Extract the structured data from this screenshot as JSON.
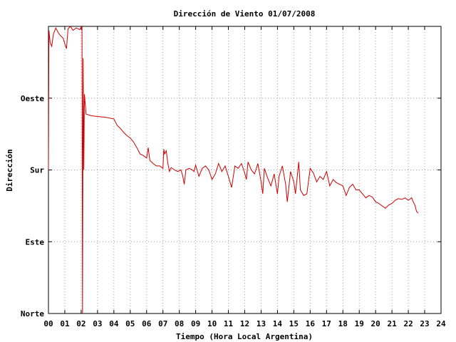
{
  "chart_data": {
    "type": "line",
    "title": "Dirección de Viento 01/07/2008",
    "xlabel": "Tiempo (Hora Local Argentina)",
    "ylabel": "Dirección",
    "xlim": [
      0,
      24
    ],
    "ylim": [
      0,
      360
    ],
    "x_ticks": [
      {
        "value": 0,
        "label": "00"
      },
      {
        "value": 1,
        "label": "01"
      },
      {
        "value": 2,
        "label": "02"
      },
      {
        "value": 3,
        "label": "03"
      },
      {
        "value": 4,
        "label": "04"
      },
      {
        "value": 5,
        "label": "05"
      },
      {
        "value": 6,
        "label": "06"
      },
      {
        "value": 7,
        "label": "07"
      },
      {
        "value": 8,
        "label": "08"
      },
      {
        "value": 9,
        "label": "09"
      },
      {
        "value": 10,
        "label": "10"
      },
      {
        "value": 11,
        "label": "11"
      },
      {
        "value": 12,
        "label": "12"
      },
      {
        "value": 13,
        "label": "13"
      },
      {
        "value": 14,
        "label": "14"
      },
      {
        "value": 15,
        "label": "15"
      },
      {
        "value": 16,
        "label": "16"
      },
      {
        "value": 17,
        "label": "17"
      },
      {
        "value": 18,
        "label": "18"
      },
      {
        "value": 19,
        "label": "19"
      },
      {
        "value": 20,
        "label": "20"
      },
      {
        "value": 21,
        "label": "21"
      },
      {
        "value": 22,
        "label": "22"
      },
      {
        "value": 23,
        "label": "23"
      },
      {
        "value": 24,
        "label": "24"
      }
    ],
    "y_ticks": [
      {
        "value": 0,
        "label": "Norte"
      },
      {
        "value": 90,
        "label": "Este"
      },
      {
        "value": 180,
        "label": "Sur"
      },
      {
        "value": 270,
        "label": "Oeste"
      }
    ],
    "grid": true,
    "line_color": "#cc0000",
    "series": [
      {
        "values": [
          [
            0.0,
            180
          ],
          [
            0.03,
            355
          ],
          [
            0.1,
            340
          ],
          [
            0.2,
            335
          ],
          [
            0.3,
            350
          ],
          [
            0.45,
            358
          ],
          [
            0.6,
            352
          ],
          [
            0.75,
            348
          ],
          [
            0.9,
            345
          ],
          [
            1.0,
            338
          ],
          [
            1.1,
            332
          ],
          [
            1.2,
            357
          ],
          [
            1.35,
            360
          ],
          [
            1.5,
            355
          ],
          [
            1.7,
            358
          ],
          [
            1.9,
            356
          ],
          [
            2.05,
            360
          ],
          [
            2.08,
            0
          ],
          [
            2.12,
            320
          ],
          [
            2.16,
            180
          ],
          [
            2.2,
            275
          ],
          [
            2.3,
            250
          ],
          [
            2.6,
            248
          ],
          [
            3.0,
            247
          ],
          [
            3.5,
            246
          ],
          [
            4.0,
            244
          ],
          [
            4.2,
            236
          ],
          [
            4.4,
            232
          ],
          [
            4.6,
            227
          ],
          [
            4.8,
            223
          ],
          [
            5.0,
            220
          ],
          [
            5.2,
            215
          ],
          [
            5.4,
            208
          ],
          [
            5.6,
            200
          ],
          [
            5.8,
            198
          ],
          [
            6.0,
            195
          ],
          [
            6.1,
            208
          ],
          [
            6.2,
            192
          ],
          [
            6.4,
            188
          ],
          [
            6.6,
            185
          ],
          [
            6.8,
            185
          ],
          [
            7.0,
            182
          ],
          [
            7.05,
            206
          ],
          [
            7.1,
            200
          ],
          [
            7.2,
            204
          ],
          [
            7.3,
            188
          ],
          [
            7.4,
            178
          ],
          [
            7.5,
            183
          ],
          [
            7.7,
            180
          ],
          [
            7.9,
            178
          ],
          [
            8.1,
            180
          ],
          [
            8.2,
            173
          ],
          [
            8.3,
            162
          ],
          [
            8.4,
            180
          ],
          [
            8.6,
            182
          ],
          [
            8.8,
            180
          ],
          [
            8.9,
            178
          ],
          [
            9.0,
            186
          ],
          [
            9.2,
            172
          ],
          [
            9.4,
            182
          ],
          [
            9.6,
            185
          ],
          [
            9.8,
            180
          ],
          [
            10.0,
            168
          ],
          [
            10.2,
            175
          ],
          [
            10.4,
            188
          ],
          [
            10.6,
            178
          ],
          [
            10.8,
            185
          ],
          [
            11.0,
            172
          ],
          [
            11.2,
            158
          ],
          [
            11.4,
            185
          ],
          [
            11.6,
            182
          ],
          [
            11.8,
            188
          ],
          [
            12.0,
            176
          ],
          [
            12.1,
            168
          ],
          [
            12.2,
            190
          ],
          [
            12.4,
            180
          ],
          [
            12.6,
            175
          ],
          [
            12.8,
            188
          ],
          [
            13.0,
            165
          ],
          [
            13.1,
            150
          ],
          [
            13.2,
            182
          ],
          [
            13.4,
            170
          ],
          [
            13.6,
            160
          ],
          [
            13.8,
            175
          ],
          [
            14.0,
            150
          ],
          [
            14.1,
            172
          ],
          [
            14.3,
            185
          ],
          [
            14.5,
            162
          ],
          [
            14.6,
            140
          ],
          [
            14.8,
            178
          ],
          [
            15.0,
            165
          ],
          [
            15.1,
            150
          ],
          [
            15.3,
            190
          ],
          [
            15.4,
            155
          ],
          [
            15.6,
            148
          ],
          [
            15.8,
            150
          ],
          [
            16.0,
            182
          ],
          [
            16.2,
            176
          ],
          [
            16.4,
            165
          ],
          [
            16.6,
            172
          ],
          [
            16.8,
            168
          ],
          [
            17.0,
            178
          ],
          [
            17.2,
            160
          ],
          [
            17.4,
            168
          ],
          [
            17.6,
            164
          ],
          [
            17.8,
            162
          ],
          [
            18.0,
            160
          ],
          [
            18.2,
            148
          ],
          [
            18.4,
            158
          ],
          [
            18.6,
            162
          ],
          [
            18.8,
            155
          ],
          [
            19.0,
            155
          ],
          [
            19.2,
            150
          ],
          [
            19.4,
            145
          ],
          [
            19.6,
            148
          ],
          [
            19.8,
            146
          ],
          [
            20.0,
            140
          ],
          [
            20.2,
            138
          ],
          [
            20.4,
            135
          ],
          [
            20.6,
            132
          ],
          [
            20.8,
            136
          ],
          [
            21.0,
            138
          ],
          [
            21.2,
            142
          ],
          [
            21.4,
            144
          ],
          [
            21.6,
            143
          ],
          [
            21.8,
            145
          ],
          [
            22.0,
            142
          ],
          [
            22.2,
            145
          ],
          [
            22.3,
            140
          ],
          [
            22.4,
            136
          ],
          [
            22.5,
            128
          ],
          [
            22.6,
            126
          ]
        ]
      }
    ]
  }
}
